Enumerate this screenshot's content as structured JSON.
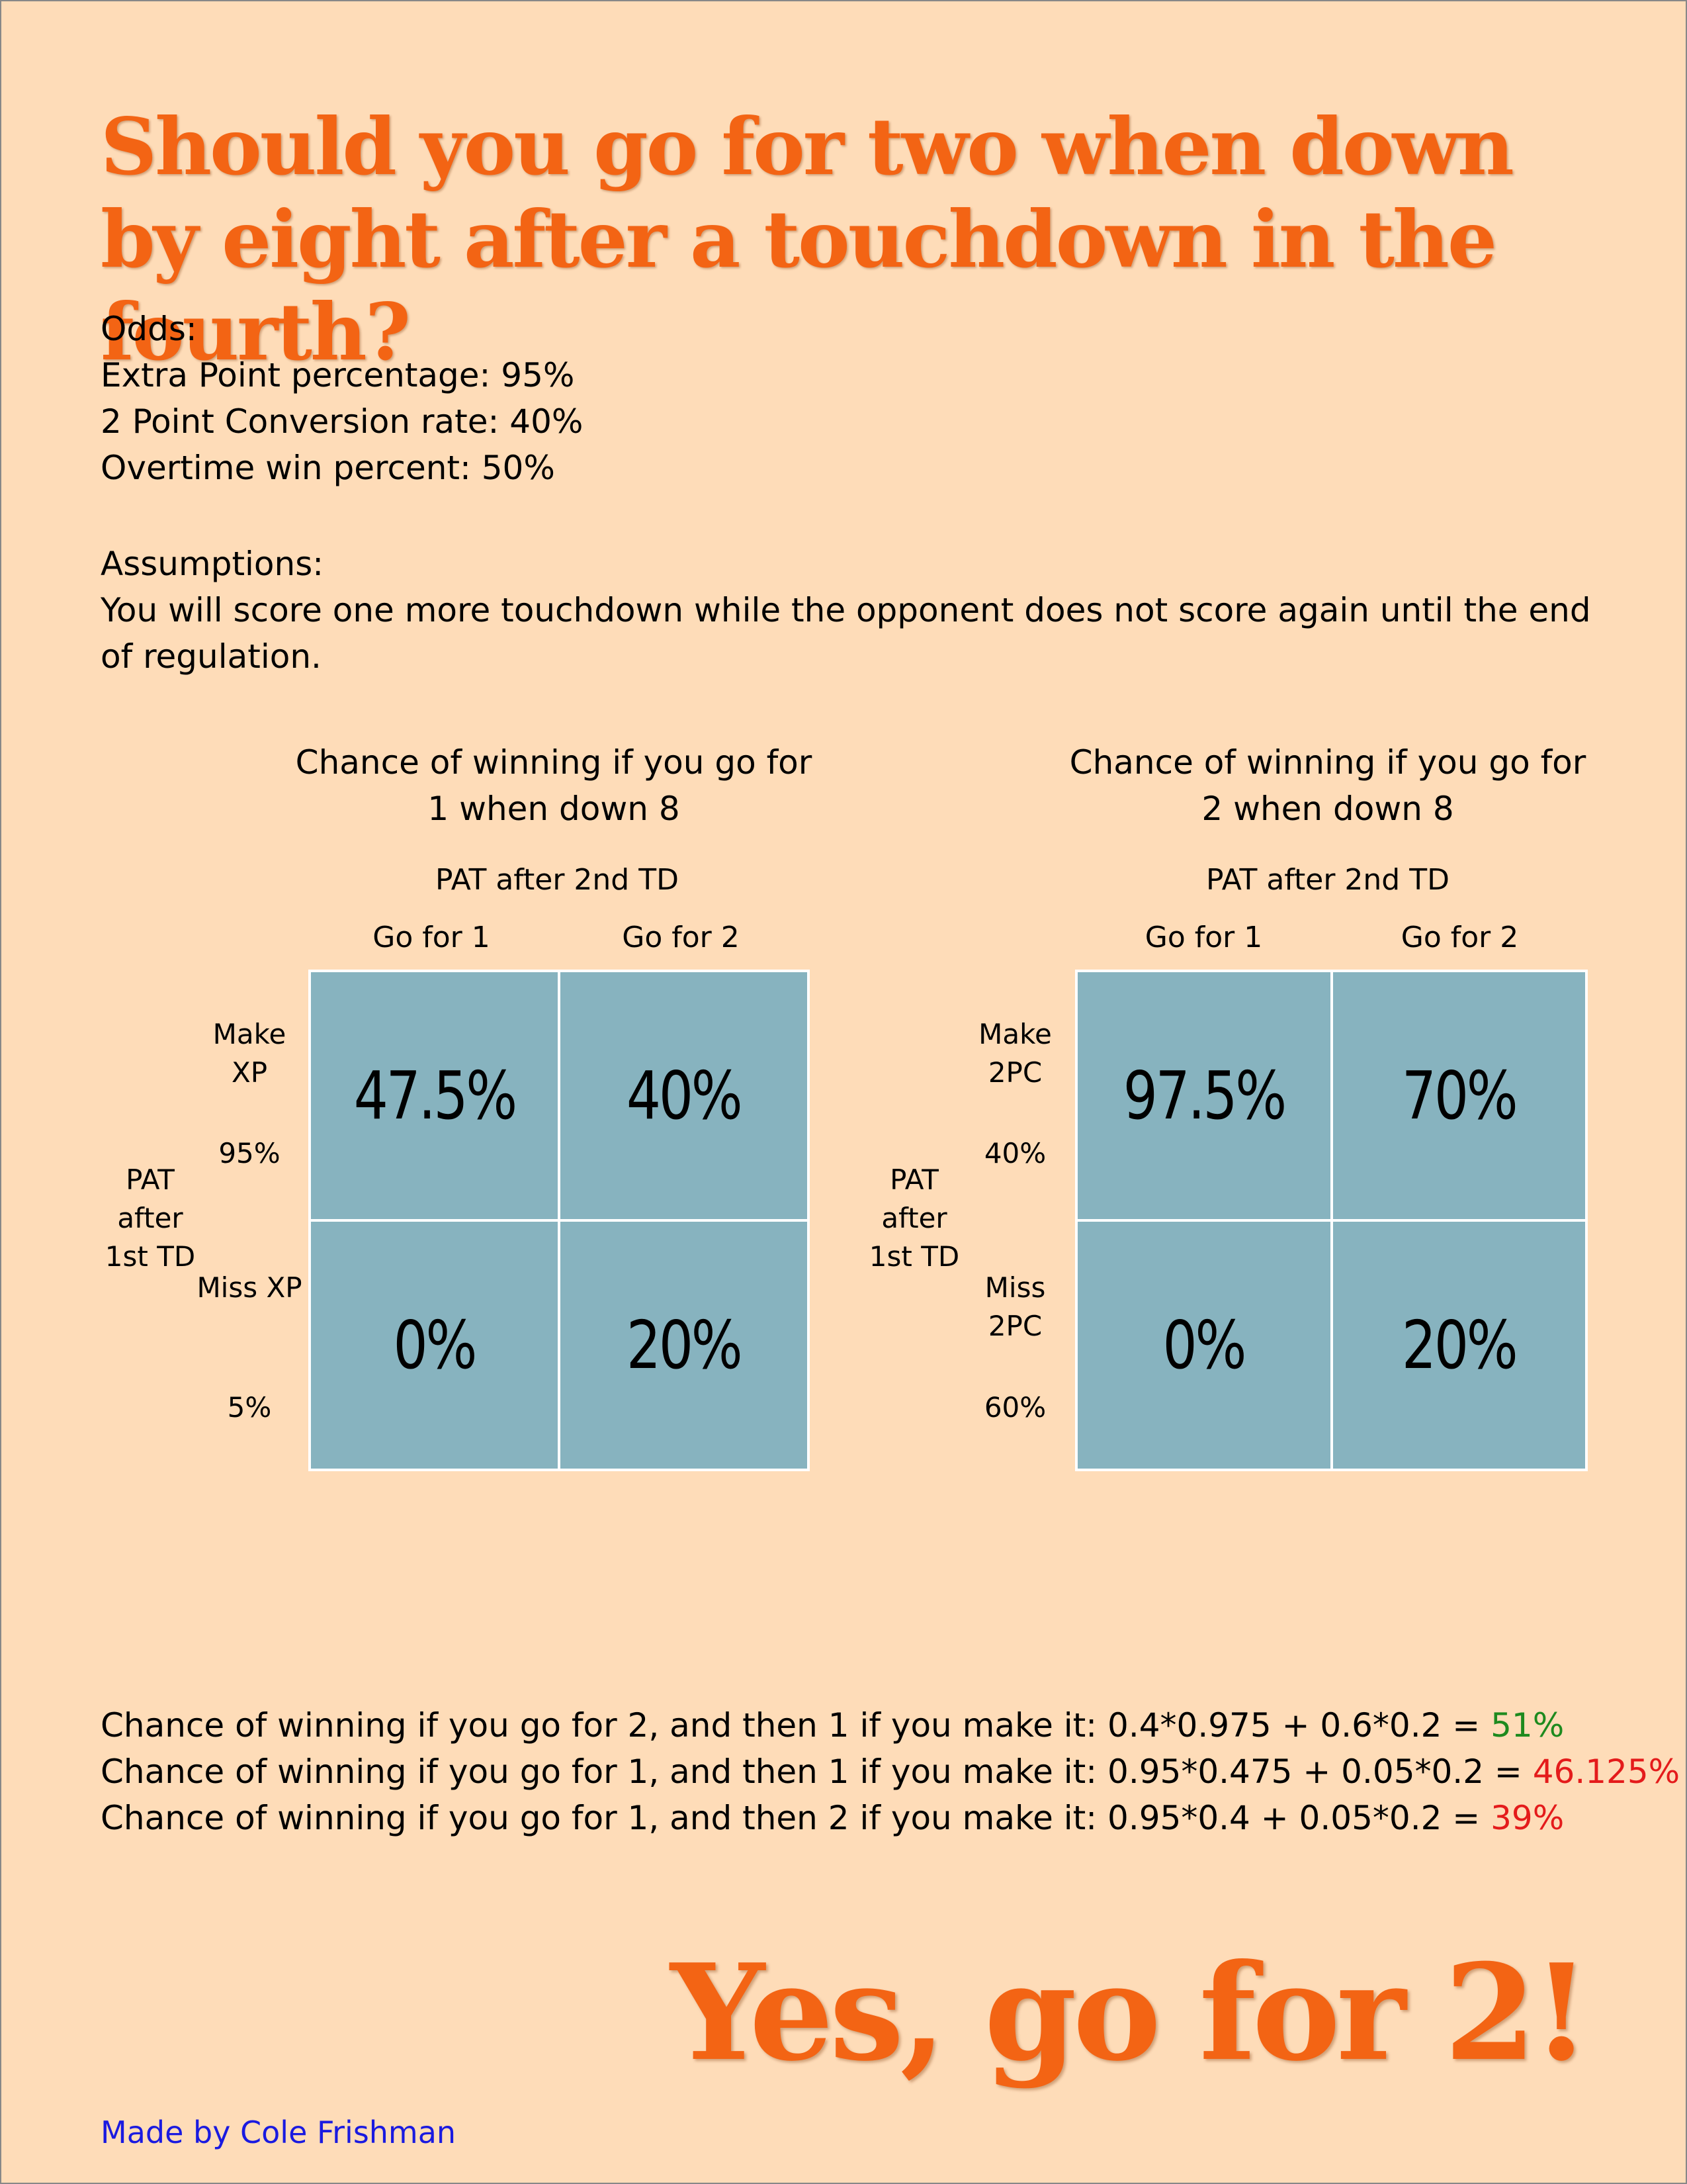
{
  "title": "Should you go for two when down by eight after a touchdown in the fourth?",
  "odds": {
    "heading": "Odds:",
    "lines": [
      "Extra Point percentage: 95%",
      "2 Point Conversion rate: 40%",
      "Overtime win percent: 50%"
    ]
  },
  "assumptions": {
    "heading": "Assumptions:",
    "text": "You will score one more touchdown while the opponent does not score again until the end of regulation."
  },
  "matrices": [
    {
      "title": "Chance of winning if you go for 1 when down 8",
      "col_group": "PAT after 2nd TD",
      "cols": [
        "Go for 1",
        "Go for 2"
      ],
      "row_group": "PAT after 1st TD",
      "rows": [
        {
          "label": "Make XP",
          "pct": "95%",
          "cells": [
            "47.5%",
            "40%"
          ]
        },
        {
          "label": "Miss XP",
          "pct": "5%",
          "cells": [
            "0%",
            "20%"
          ]
        }
      ]
    },
    {
      "title": "Chance of winning if you go for 2 when down 8",
      "col_group": "PAT after 2nd TD",
      "cols": [
        "Go for 1",
        "Go for 2"
      ],
      "row_group": "PAT after 1st TD",
      "rows": [
        {
          "label": "Make 2PC",
          "pct": "40%",
          "cells": [
            "97.5%",
            "70%"
          ]
        },
        {
          "label": "Miss 2PC",
          "pct": "60%",
          "cells": [
            "0%",
            "20%"
          ]
        }
      ]
    }
  ],
  "calculations": [
    {
      "text": "Chance of winning if you go for 2, and then 1 if you make it: 0.4*0.975 + 0.6*0.2 = ",
      "result": "51%",
      "result_color": "#1e8a1e"
    },
    {
      "text": "Chance of winning if you go for 1, and then 1 if you make it: 0.95*0.475 + 0.05*0.2 = ",
      "result": "46.125%",
      "result_color": "#e41b1b"
    },
    {
      "text": "Chance of winning if you go for 1, and then 2 if you make it: 0.95*0.4 + 0.05*0.2 = ",
      "result": "39%",
      "result_color": "#e41b1b"
    }
  ],
  "conclusion": "Yes, go for 2!",
  "credit": "Made by Cole Frishman",
  "colors": {
    "background": "#fedcb8",
    "title": "#f36414",
    "cell": "#87b3bf",
    "credit": "#1a1ae0"
  }
}
